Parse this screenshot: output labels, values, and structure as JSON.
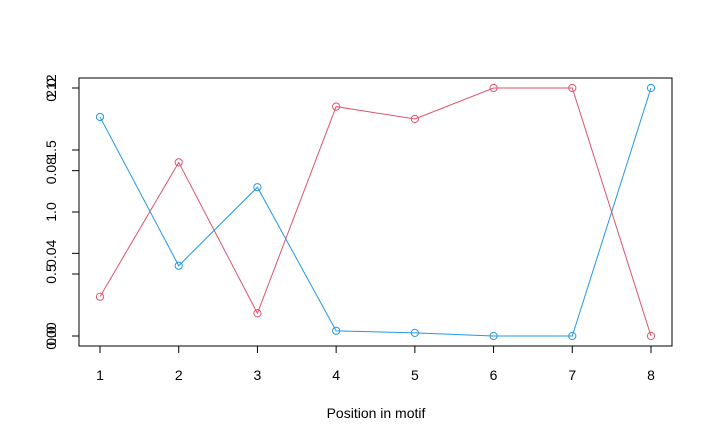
{
  "chart_data": {
    "type": "line",
    "title": "",
    "xlabel": "Position in motif",
    "ylabel": "",
    "x": [
      1,
      2,
      3,
      4,
      5,
      6,
      7,
      8
    ],
    "xlim": [
      1,
      8
    ],
    "grid": false,
    "legend": "none",
    "series": [
      {
        "color": "#df536b",
        "marker": "open-circle",
        "values": [
          0.019,
          0.084,
          0.011,
          0.111,
          0.105,
          0.12,
          0.12,
          0.0
        ]
      },
      {
        "color": "#2297e6",
        "marker": "open-circle",
        "values": [
          0.106,
          0.034,
          0.072,
          0.0025,
          0.0015,
          0.0,
          0.0,
          0.12
        ]
      }
    ],
    "y_axes": [
      {
        "name": "overlaid-axis-a",
        "ylim": [
          0,
          0.12
        ],
        "ticks": [
          0,
          0.04,
          0.08,
          0.12
        ],
        "tick_labels": [
          "0.00",
          "0.04",
          "0.08",
          "0.12"
        ]
      },
      {
        "name": "overlaid-axis-b",
        "ylim": [
          0,
          2.0
        ],
        "ticks": [
          0,
          0.5,
          1.0,
          1.5,
          2.0
        ],
        "tick_labels": [
          "0.0",
          "0.5",
          "1.0",
          "1.5",
          "2.0"
        ]
      }
    ],
    "x_tick_labels": [
      "1",
      "2",
      "3",
      "4",
      "5",
      "6",
      "7",
      "8"
    ]
  }
}
